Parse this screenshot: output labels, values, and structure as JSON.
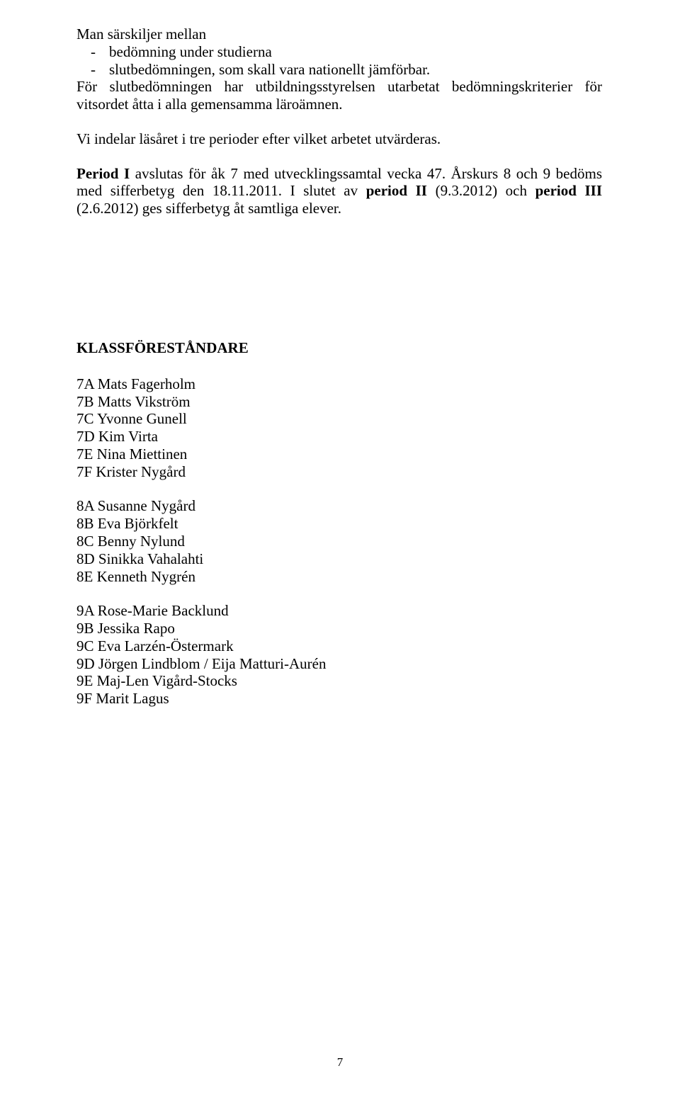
{
  "intro": {
    "lead": "Man särskiljer mellan",
    "bullets": [
      "bedömning under studierna",
      "slutbedömningen, som skall vara nationellt jämförbar."
    ],
    "followup": "För slutbedömningen har utbildningsstyrelsen utarbetat bedömningskriterier för vitsordet åtta i alla gemensamma läroämnen."
  },
  "para2": "Vi indelar läsåret i tre perioder efter vilket arbetet utvärderas.",
  "para3": {
    "part1_bold": "Period I",
    "part1_rest": " avslutas för åk 7 med utvecklingssamtal vecka 47. Årskurs 8 och 9 bedöms med sifferbetyg den 18.11.2011. I slutet av ",
    "part2_bold": "period II",
    "part2_rest": " (9.3.2012) och ",
    "part3_bold": "period III",
    "part3_rest": " (2.6.2012) ges sifferbetyg åt samtliga elever."
  },
  "heading": "KLASSFÖRESTÅNDARE",
  "group7": [
    "7A Mats Fagerholm",
    "7B Matts Vikström",
    "7C Yvonne Gunell",
    "7D Kim Virta",
    "7E Nina Miettinen",
    "7F Krister Nygård"
  ],
  "group8": [
    "8A Susanne Nygård",
    "8B Eva Björkfelt",
    "8C Benny Nylund",
    "8D Sinikka Vahalahti",
    "8E Kenneth Nygrén"
  ],
  "group9": [
    "9A Rose-Marie Backlund",
    "9B Jessika Rapo",
    "9C Eva Larzén-Östermark",
    "9D Jörgen Lindblom / Eija Matturi-Aurén",
    "9E  Maj-Len Vigård-Stocks",
    "9F  Marit Lagus"
  ],
  "pageNumber": "7"
}
